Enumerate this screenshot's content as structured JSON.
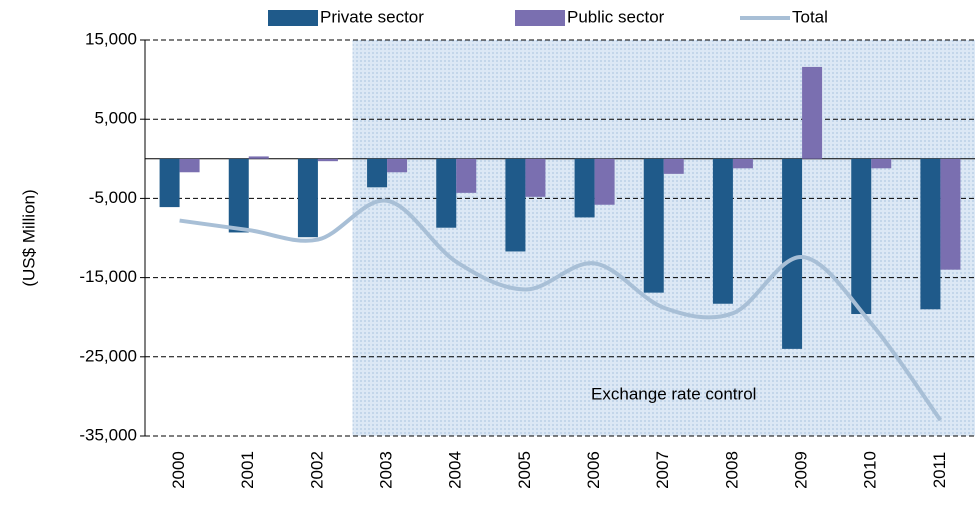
{
  "chart_data": {
    "type": "bar",
    "y_label": "(US$ Million)",
    "categories": [
      "2000",
      "2001",
      "2002",
      "2003",
      "2004",
      "2005",
      "2006",
      "2007",
      "2008",
      "2009",
      "2010",
      "2011"
    ],
    "series": [
      {
        "name": "Private sector",
        "type": "bar",
        "color": "#1f5a8a",
        "values": [
          -6100,
          -9300,
          -9900,
          -3600,
          -8700,
          -11700,
          -7400,
          -16900,
          -18300,
          -24000,
          -19600,
          -19000
        ]
      },
      {
        "name": "Public sector",
        "type": "bar",
        "color": "#7a6fb0",
        "values": [
          -1700,
          300,
          -300,
          -1700,
          -4300,
          -4800,
          -5800,
          -1900,
          -1200,
          11600,
          -1200,
          -14000
        ]
      },
      {
        "name": "Total",
        "type": "line",
        "color": "#a8bfd6",
        "values": [
          -7800,
          -9000,
          -10200,
          -5300,
          -13000,
          -16500,
          -13200,
          -18800,
          -19500,
          -12400,
          -20800,
          -33000
        ]
      }
    ],
    "ylim": [
      -35000,
      15000
    ],
    "yticks": [
      {
        "value": -35000,
        "label": "-35,000"
      },
      {
        "value": -25000,
        "label": "-25,000"
      },
      {
        "value": -15000,
        "label": "-15,000"
      },
      {
        "value": -5000,
        "label": "-5,000"
      },
      {
        "value": 5000,
        "label": "5,000"
      },
      {
        "value": 15000,
        "label": "15,000"
      }
    ],
    "grid": true,
    "legend": "top",
    "annotation": {
      "text": "Exchange rate control",
      "from": "2003"
    }
  }
}
